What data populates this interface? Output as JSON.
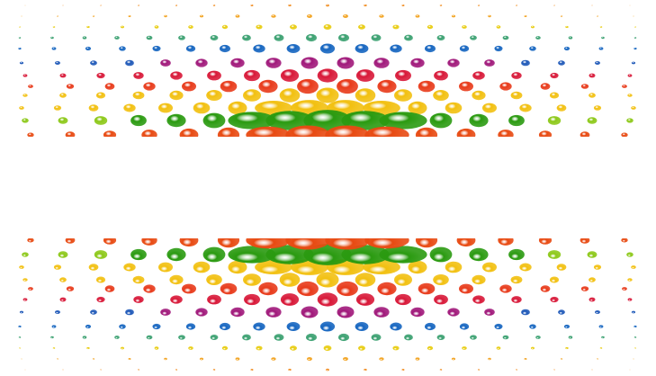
{
  "image": {
    "description_colors": {
      "background": "#ffffff",
      "row_palette": [
        "#f08a1c",
        "#f2a21e",
        "#e8cc10",
        "#3aa070",
        "#1565c0",
        "#1e58b8",
        "#a0187a",
        "#d81838",
        "#e83a1a",
        "#f2c010",
        "#8cc818",
        "#2a9a10",
        "#e84a12"
      ]
    }
  }
}
